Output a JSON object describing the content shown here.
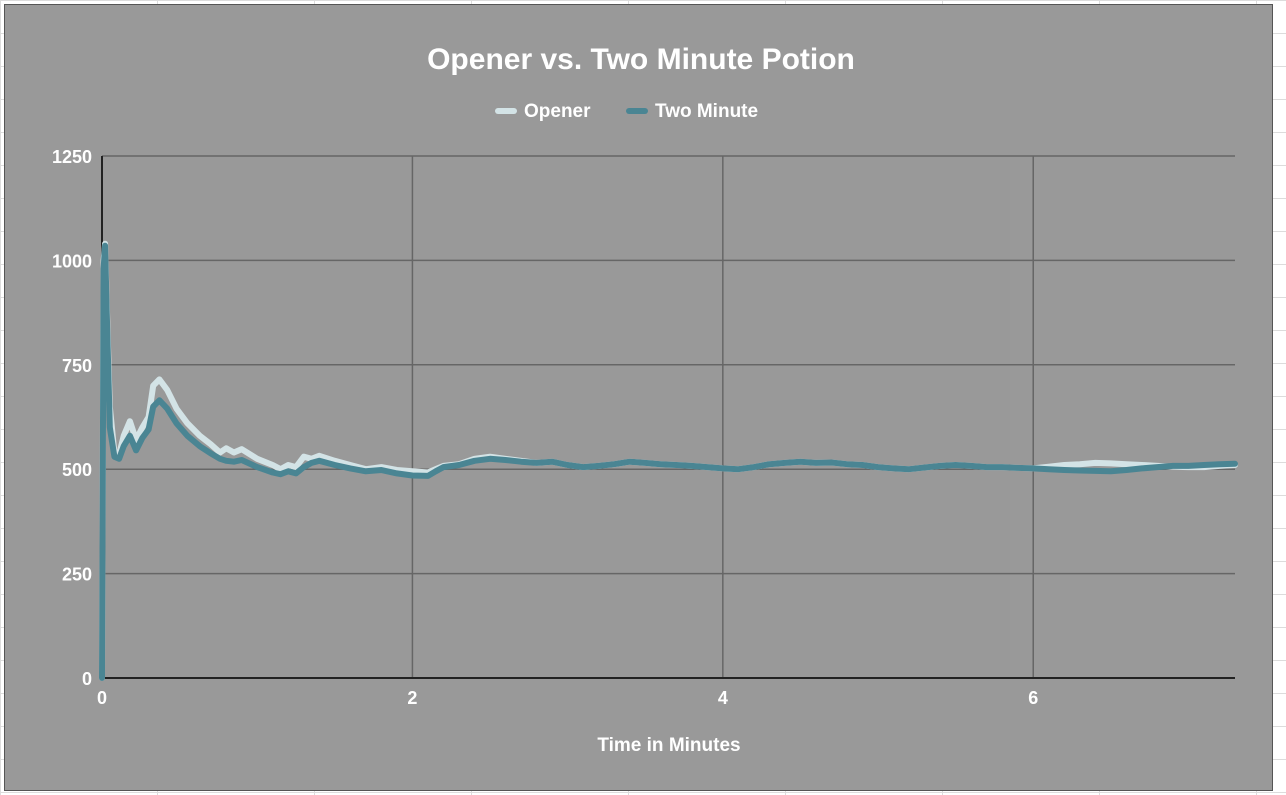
{
  "chart_data": {
    "type": "line",
    "title": "Opener vs. Two Minute Potion",
    "xlabel": "Time in Minutes",
    "ylabel": "",
    "xlim": [
      0,
      7.3
    ],
    "ylim": [
      0,
      1250
    ],
    "xticks": [
      "0",
      "2",
      "4",
      "6"
    ],
    "xtick_values": [
      0,
      2,
      4,
      6
    ],
    "yticks": [
      "0",
      "250",
      "500",
      "750",
      "1000",
      "1250"
    ],
    "ytick_values": [
      0,
      250,
      500,
      750,
      1000,
      1250
    ],
    "grid": true,
    "legend_position": "top-center",
    "series": [
      {
        "name": "Opener",
        "color": "#d3e3e6",
        "points": [
          [
            0.0,
            0
          ],
          [
            0.01,
            1000
          ],
          [
            0.02,
            1040
          ],
          [
            0.03,
            900
          ],
          [
            0.05,
            650
          ],
          [
            0.08,
            540
          ],
          [
            0.11,
            535
          ],
          [
            0.14,
            580
          ],
          [
            0.18,
            615
          ],
          [
            0.22,
            570
          ],
          [
            0.26,
            600
          ],
          [
            0.3,
            625
          ],
          [
            0.33,
            700
          ],
          [
            0.37,
            715
          ],
          [
            0.42,
            690
          ],
          [
            0.48,
            645
          ],
          [
            0.55,
            610
          ],
          [
            0.63,
            580
          ],
          [
            0.7,
            560
          ],
          [
            0.76,
            540
          ],
          [
            0.8,
            550
          ],
          [
            0.85,
            540
          ],
          [
            0.9,
            548
          ],
          [
            1.0,
            525
          ],
          [
            1.1,
            510
          ],
          [
            1.15,
            500
          ],
          [
            1.2,
            510
          ],
          [
            1.25,
            505
          ],
          [
            1.3,
            530
          ],
          [
            1.35,
            525
          ],
          [
            1.4,
            532
          ],
          [
            1.5,
            520
          ],
          [
            1.6,
            510
          ],
          [
            1.7,
            500
          ],
          [
            1.8,
            505
          ],
          [
            1.9,
            498
          ],
          [
            2.0,
            495
          ],
          [
            2.1,
            492
          ],
          [
            2.15,
            500
          ],
          [
            2.2,
            508
          ],
          [
            2.3,
            512
          ],
          [
            2.4,
            525
          ],
          [
            2.5,
            530
          ],
          [
            2.6,
            525
          ],
          [
            2.7,
            520
          ],
          [
            2.8,
            515
          ],
          [
            2.9,
            518
          ],
          [
            3.0,
            510
          ],
          [
            3.1,
            505
          ],
          [
            3.2,
            508
          ],
          [
            3.3,
            512
          ],
          [
            3.4,
            518
          ],
          [
            3.5,
            515
          ],
          [
            3.6,
            512
          ],
          [
            3.7,
            510
          ],
          [
            3.8,
            508
          ],
          [
            3.9,
            505
          ],
          [
            4.0,
            502
          ],
          [
            4.1,
            500
          ],
          [
            4.2,
            505
          ],
          [
            4.3,
            512
          ],
          [
            4.4,
            515
          ],
          [
            4.5,
            518
          ],
          [
            4.6,
            515
          ],
          [
            4.7,
            516
          ],
          [
            4.8,
            512
          ],
          [
            4.9,
            510
          ],
          [
            5.0,
            505
          ],
          [
            5.1,
            502
          ],
          [
            5.2,
            500
          ],
          [
            5.3,
            504
          ],
          [
            5.4,
            508
          ],
          [
            5.5,
            510
          ],
          [
            5.6,
            508
          ],
          [
            5.7,
            505
          ],
          [
            5.8,
            505
          ],
          [
            5.9,
            503
          ],
          [
            6.0,
            502
          ],
          [
            6.1,
            506
          ],
          [
            6.2,
            510
          ],
          [
            6.3,
            512
          ],
          [
            6.4,
            515
          ],
          [
            6.5,
            514
          ],
          [
            6.6,
            512
          ],
          [
            6.7,
            510
          ],
          [
            6.8,
            508
          ],
          [
            6.9,
            506
          ],
          [
            7.0,
            505
          ],
          [
            7.1,
            505
          ],
          [
            7.2,
            508
          ],
          [
            7.3,
            510
          ]
        ]
      },
      {
        "name": "Two Minute",
        "color": "#4a8593",
        "points": [
          [
            0.0,
            0
          ],
          [
            0.01,
            980
          ],
          [
            0.02,
            1035
          ],
          [
            0.03,
            880
          ],
          [
            0.05,
            600
          ],
          [
            0.08,
            530
          ],
          [
            0.11,
            525
          ],
          [
            0.14,
            555
          ],
          [
            0.18,
            580
          ],
          [
            0.22,
            545
          ],
          [
            0.26,
            575
          ],
          [
            0.3,
            595
          ],
          [
            0.33,
            650
          ],
          [
            0.37,
            665
          ],
          [
            0.42,
            645
          ],
          [
            0.48,
            610
          ],
          [
            0.55,
            580
          ],
          [
            0.63,
            555
          ],
          [
            0.7,
            538
          ],
          [
            0.76,
            525
          ],
          [
            0.8,
            520
          ],
          [
            0.85,
            518
          ],
          [
            0.9,
            522
          ],
          [
            1.0,
            505
          ],
          [
            1.1,
            492
          ],
          [
            1.15,
            488
          ],
          [
            1.2,
            495
          ],
          [
            1.25,
            490
          ],
          [
            1.3,
            505
          ],
          [
            1.35,
            515
          ],
          [
            1.4,
            520
          ],
          [
            1.5,
            510
          ],
          [
            1.6,
            502
          ],
          [
            1.7,
            495
          ],
          [
            1.8,
            498
          ],
          [
            1.9,
            490
          ],
          [
            2.0,
            485
          ],
          [
            2.1,
            484
          ],
          [
            2.15,
            495
          ],
          [
            2.2,
            505
          ],
          [
            2.3,
            510
          ],
          [
            2.4,
            520
          ],
          [
            2.5,
            525
          ],
          [
            2.6,
            522
          ],
          [
            2.7,
            518
          ],
          [
            2.8,
            515
          ],
          [
            2.9,
            518
          ],
          [
            3.0,
            510
          ],
          [
            3.1,
            505
          ],
          [
            3.2,
            508
          ],
          [
            3.3,
            512
          ],
          [
            3.4,
            518
          ],
          [
            3.5,
            515
          ],
          [
            3.6,
            512
          ],
          [
            3.7,
            510
          ],
          [
            3.8,
            508
          ],
          [
            3.9,
            505
          ],
          [
            4.0,
            502
          ],
          [
            4.1,
            500
          ],
          [
            4.2,
            505
          ],
          [
            4.3,
            512
          ],
          [
            4.4,
            515
          ],
          [
            4.5,
            518
          ],
          [
            4.6,
            515
          ],
          [
            4.7,
            516
          ],
          [
            4.8,
            512
          ],
          [
            4.9,
            510
          ],
          [
            5.0,
            505
          ],
          [
            5.1,
            502
          ],
          [
            5.2,
            500
          ],
          [
            5.3,
            504
          ],
          [
            5.4,
            508
          ],
          [
            5.5,
            510
          ],
          [
            5.6,
            508
          ],
          [
            5.7,
            505
          ],
          [
            5.8,
            505
          ],
          [
            5.9,
            503
          ],
          [
            6.0,
            502
          ],
          [
            6.1,
            500
          ],
          [
            6.2,
            498
          ],
          [
            6.3,
            497
          ],
          [
            6.4,
            496
          ],
          [
            6.5,
            495
          ],
          [
            6.6,
            498
          ],
          [
            6.7,
            502
          ],
          [
            6.8,
            505
          ],
          [
            6.9,
            508
          ],
          [
            7.0,
            508
          ],
          [
            7.1,
            510
          ],
          [
            7.2,
            512
          ],
          [
            7.3,
            513
          ]
        ]
      }
    ]
  }
}
